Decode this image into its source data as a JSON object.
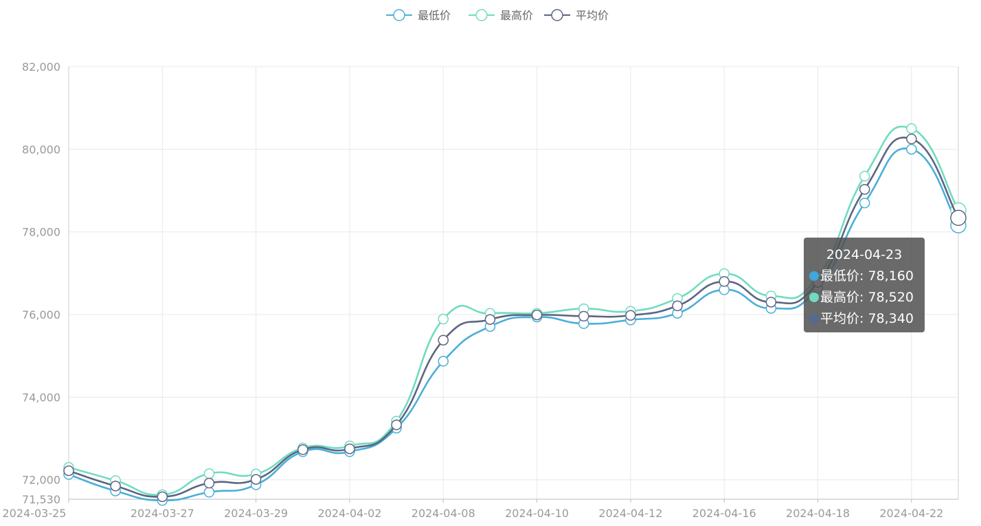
{
  "legend": [
    {
      "label": "最低价",
      "color": "#4aaed8"
    },
    {
      "label": "最高价",
      "color": "#6fdcbf"
    },
    {
      "label": "平均价",
      "color": "#5d6482"
    }
  ],
  "tooltip": {
    "date": "2024-04-23",
    "rows": [
      {
        "label": "最低价: 78,160",
        "color": "#3fa7dc"
      },
      {
        "label": "最高价: 78,520",
        "color": "#6fdcbf"
      },
      {
        "label": "平均价: 78,340",
        "color": "#516b91"
      }
    ]
  },
  "chart_data": {
    "type": "line",
    "smooth": true,
    "grid": true,
    "legend_position": "top-center",
    "x_tick_labels": [
      "2024-03-25",
      "2024-03-27",
      "2024-03-29",
      "2024-04-02",
      "2024-04-08",
      "2024-04-10",
      "2024-04-12",
      "2024-04-16",
      "2024-04-18",
      "2024-04-22"
    ],
    "y_tick_labels": [
      "82,000",
      "80,000",
      "78,000",
      "76,000",
      "74,000",
      "72,000",
      "71,530"
    ],
    "ylim": [
      71530,
      82000
    ],
    "y_ticks": [
      82000,
      80000,
      78000,
      76000,
      74000,
      72000,
      71530
    ],
    "x": [
      "2024-03-25",
      "2024-03-26",
      "2024-03-27",
      "2024-03-28",
      "2024-03-29",
      "2024-04-01",
      "2024-04-02",
      "2024-04-03",
      "2024-04-08",
      "2024-04-09",
      "2024-04-10",
      "2024-04-11",
      "2024-04-12",
      "2024-04-15",
      "2024-04-16",
      "2024-04-17",
      "2024-04-18",
      "2024-04-19",
      "2024-04-22",
      "2024-04-23"
    ],
    "series": [
      {
        "name": "最低价",
        "color": "#4aaed8",
        "values": [
          72130,
          71730,
          71500,
          71700,
          71880,
          72680,
          72680,
          73250,
          74870,
          75710,
          75940,
          75780,
          75870,
          76030,
          76600,
          76150,
          76640,
          78700,
          80000,
          78160
        ]
      },
      {
        "name": "最高价",
        "color": "#6fdcbf",
        "values": [
          72300,
          71980,
          71640,
          72150,
          72140,
          72770,
          72820,
          73420,
          75890,
          76030,
          76030,
          76140,
          76080,
          76390,
          76990,
          76450,
          76910,
          79350,
          80500,
          78520
        ]
      },
      {
        "name": "平均价",
        "color": "#5d6482",
        "values": [
          72220,
          71850,
          71590,
          71920,
          72010,
          72730,
          72750,
          73330,
          75380,
          75880,
          75990,
          75960,
          75980,
          76210,
          76800,
          76300,
          76780,
          79030,
          80250,
          78340
        ]
      }
    ]
  }
}
